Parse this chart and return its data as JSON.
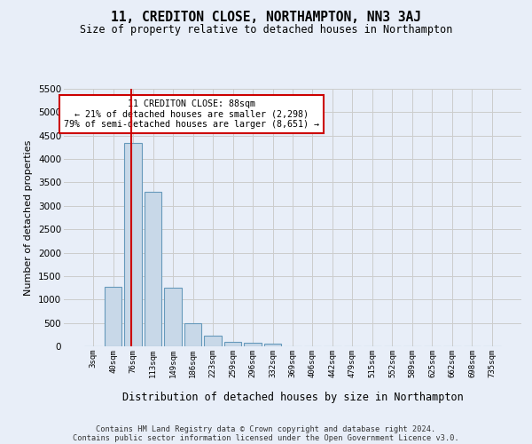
{
  "title": "11, CREDITON CLOSE, NORTHAMPTON, NN3 3AJ",
  "subtitle": "Size of property relative to detached houses in Northampton",
  "xlabel": "Distribution of detached houses by size in Northampton",
  "ylabel": "Number of detached properties",
  "footer_line1": "Contains HM Land Registry data © Crown copyright and database right 2024.",
  "footer_line2": "Contains public sector information licensed under the Open Government Licence v3.0.",
  "bar_labels": [
    "3sqm",
    "40sqm",
    "76sqm",
    "113sqm",
    "149sqm",
    "186sqm",
    "223sqm",
    "259sqm",
    "296sqm",
    "332sqm",
    "369sqm",
    "406sqm",
    "442sqm",
    "479sqm",
    "515sqm",
    "552sqm",
    "589sqm",
    "625sqm",
    "662sqm",
    "698sqm",
    "735sqm"
  ],
  "bar_values": [
    0,
    1270,
    4350,
    3300,
    1260,
    490,
    220,
    100,
    70,
    60,
    0,
    0,
    0,
    0,
    0,
    0,
    0,
    0,
    0,
    0,
    0
  ],
  "bar_color": "#c8d8e8",
  "bar_edge_color": "#6699bb",
  "grid_color": "#cccccc",
  "background_color": "#e8eef8",
  "vline_color": "#cc0000",
  "annotation_text": "11 CREDITON CLOSE: 88sqm\n← 21% of detached houses are smaller (2,298)\n79% of semi-detached houses are larger (8,651) →",
  "annotation_box_color": "#ffffff",
  "annotation_box_edge": "#cc0000",
  "ylim": [
    0,
    5500
  ],
  "yticks": [
    0,
    500,
    1000,
    1500,
    2000,
    2500,
    3000,
    3500,
    4000,
    4500,
    5000,
    5500
  ]
}
